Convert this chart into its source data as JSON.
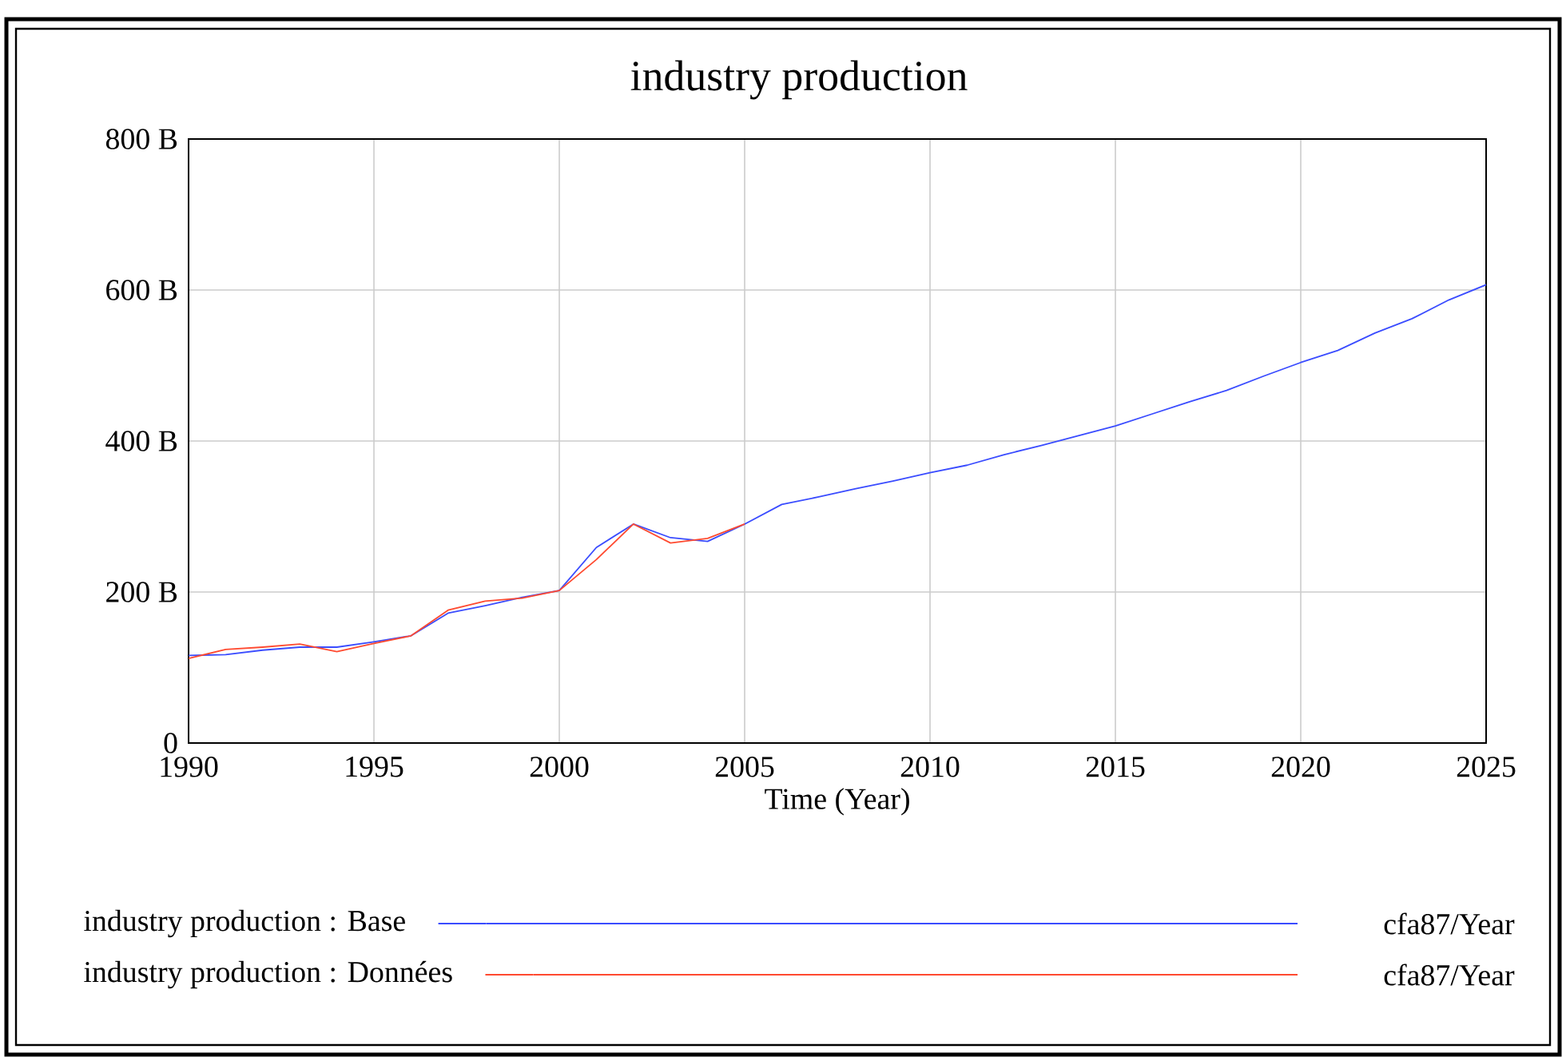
{
  "chart_data": {
    "type": "line",
    "title": "industry production",
    "xlabel": "Time (Year)",
    "xlim": [
      1990,
      2025
    ],
    "xticks": [
      1990,
      1995,
      2000,
      2005,
      2010,
      2015,
      2020,
      2025
    ],
    "ylim": [
      0,
      800
    ],
    "yticks": [
      0,
      {
        "value": 200,
        "label": "200 B"
      },
      {
        "value": 400,
        "label": "400 B"
      },
      {
        "value": 600,
        "label": "600 B"
      },
      {
        "value": 800,
        "label": "800 B"
      }
    ],
    "grid": true,
    "legend": "bottom",
    "line_style": "solid",
    "marker": "none",
    "annotations": [
      "cfa87/Year",
      "cfa87/Year"
    ],
    "series": [
      {
        "name": "industry production : Base",
        "color": "#3a4cff",
        "x": [
          1990,
          1991,
          1992,
          1993,
          1994,
          1995,
          1996,
          1997,
          1998,
          1999,
          2000,
          2001,
          2002,
          2003,
          2004,
          2005,
          2006,
          2007,
          2008,
          2009,
          2010,
          2011,
          2012,
          2013,
          2014,
          2015,
          2016,
          2017,
          2018,
          2019,
          2020,
          2021,
          2022,
          2023,
          2024,
          2025
        ],
        "values": [
          116,
          117,
          123,
          127,
          127,
          134,
          142,
          172,
          182,
          193,
          202,
          259,
          290,
          272,
          267,
          290,
          316,
          326,
          337,
          347,
          358,
          368,
          382,
          394,
          407,
          420,
          436,
          452,
          467,
          486,
          504,
          520,
          543,
          562,
          587,
          607
        ]
      },
      {
        "name": "industry production : Données",
        "color": "#ff4a30",
        "x": [
          1990,
          1991,
          1992,
          1993,
          1994,
          1995,
          1996,
          1997,
          1998,
          1999,
          2000,
          2001,
          2002,
          2003,
          2004,
          2005
        ],
        "values": [
          112,
          124,
          127,
          131,
          121,
          132,
          142,
          176,
          188,
          192,
          202,
          243,
          290,
          265,
          271,
          290
        ]
      }
    ]
  }
}
